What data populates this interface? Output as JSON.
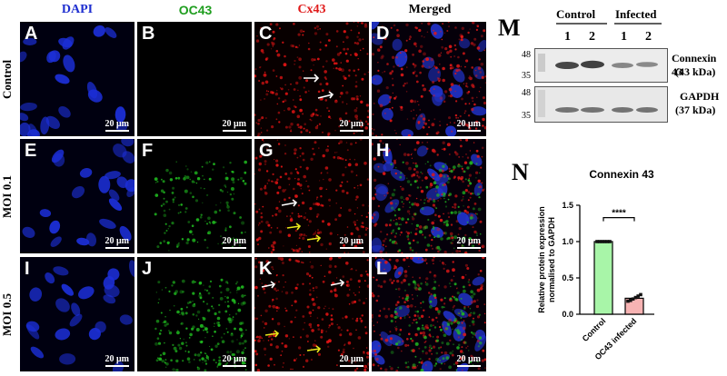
{
  "columns": [
    {
      "label": "DAPI",
      "color": "#1f2fd0"
    },
    {
      "label": "OC43",
      "color": "#1f9e1f"
    },
    {
      "label": "Cx43",
      "color": "#e01b1b"
    },
    {
      "label": "Merged",
      "color": "#000000"
    }
  ],
  "rows": [
    "Control",
    "MOI 0.1",
    "MOI 0.5"
  ],
  "panel_letters": [
    "A",
    "B",
    "C",
    "D",
    "E",
    "F",
    "G",
    "H",
    "I",
    "J",
    "K",
    "L"
  ],
  "scale_bar_label": "20 μm",
  "blot": {
    "letter": "M",
    "group_control": "Control",
    "group_infected": "Infected",
    "lanes": [
      "1",
      "2",
      "1",
      "2"
    ],
    "top_marker_a": "48",
    "top_marker_b": "35",
    "bottom_marker_a": "48",
    "bottom_marker_b": "35",
    "protein1_name": "Connexin 43",
    "protein1_size": "(43 kDa)",
    "protein2_name": "GAPDH",
    "protein2_size": "(37 kDa)"
  },
  "chart_letter": "N",
  "chart_data": {
    "type": "bar",
    "title": "Connexin 43",
    "ylabel_line1": "Relative protein expression",
    "ylabel_line2": "normalised to GAPDH",
    "categories": [
      "Control",
      "OC43 infected"
    ],
    "values": [
      1.0,
      0.22
    ],
    "points": [
      [
        1.0,
        1.0,
        1.0,
        1.0,
        1.0,
        1.0
      ],
      [
        0.18,
        0.19,
        0.21,
        0.23,
        0.25,
        0.27
      ]
    ],
    "ylim": [
      0,
      1.5
    ],
    "yticks": [
      "0.0",
      "0.5",
      "1.0",
      "1.5"
    ],
    "significance": "****",
    "colors": [
      "#a8f5a8",
      "#f7b3b3"
    ]
  }
}
